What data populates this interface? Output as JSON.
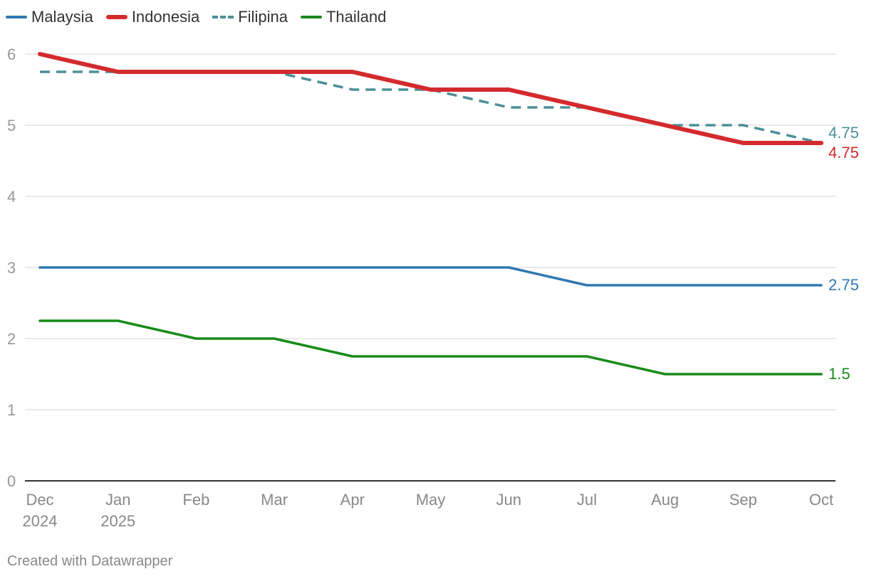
{
  "chart_data": {
    "type": "line",
    "categories": [
      "Dec",
      "Jan",
      "Feb",
      "Mar",
      "Apr",
      "May",
      "Jun",
      "Jul",
      "Aug",
      "Sep",
      "Oct"
    ],
    "category_sublabels": [
      "2024",
      "2025",
      "",
      "",
      "",
      "",
      "",
      "",
      "",
      "",
      ""
    ],
    "ylim": [
      0,
      6
    ],
    "yticks": [
      0,
      1,
      2,
      3,
      4,
      5,
      6
    ],
    "grid": true,
    "legend_position": "top-left",
    "series": [
      {
        "name": "Malaysia",
        "color": "#2f79b0",
        "style": "solid",
        "weight": "normal",
        "values": [
          3,
          3,
          3,
          3,
          3,
          3,
          3,
          2.75,
          2.75,
          2.75,
          2.75
        ],
        "end_label": "2.75"
      },
      {
        "name": "Indonesia",
        "color": "#d42a2d",
        "style": "solid",
        "weight": "thick",
        "values": [
          6,
          5.75,
          5.75,
          5.75,
          5.75,
          5.5,
          5.5,
          5.25,
          5,
          4.75,
          4.75
        ],
        "end_label": "4.75"
      },
      {
        "name": "Filipina",
        "color": "#4d8f99",
        "style": "dashed",
        "weight": "normal",
        "values": [
          5.75,
          5.75,
          5.75,
          5.75,
          5.5,
          5.5,
          5.25,
          5.25,
          5,
          5,
          4.75
        ],
        "end_label": "4.75"
      },
      {
        "name": "Thailand",
        "color": "#1a8a1a",
        "style": "solid",
        "weight": "normal",
        "values": [
          2.25,
          2.25,
          2,
          2,
          1.75,
          1.75,
          1.75,
          1.75,
          1.5,
          1.5,
          1.5
        ],
        "end_label": "1.5"
      }
    ]
  },
  "footer": {
    "credit": "Created with Datawrapper"
  }
}
